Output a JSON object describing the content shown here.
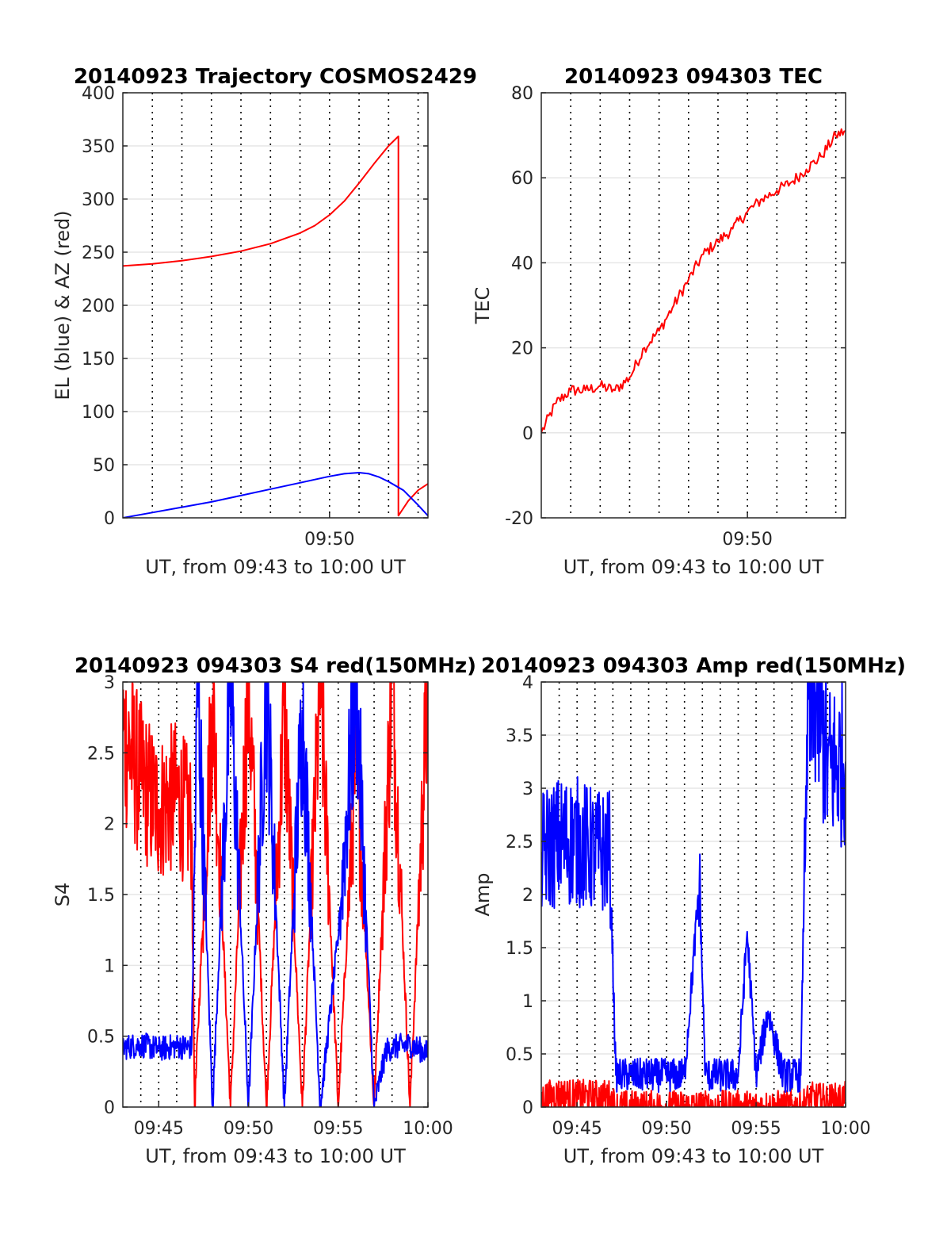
{
  "figure": {
    "background": "#ffffff"
  },
  "colors": {
    "red": "#ff0000",
    "blue": "#0000ff",
    "grid": "#000000",
    "frame": "#262626"
  },
  "chart_data": [
    {
      "type": "line",
      "title": "20140923 Trajectory COSMOS2429",
      "xlabel": "UT, from 09:43 to 10:00 UT",
      "ylabel": "EL (blue) & AZ (red)",
      "xlim": [
        "09:43:00",
        "09:53:20"
      ],
      "ylim": [
        0,
        400
      ],
      "yticks": [
        0,
        50,
        100,
        150,
        200,
        250,
        300,
        350,
        400
      ],
      "xticks": [
        {
          "t": "09:50:00",
          "label": "09:50"
        }
      ],
      "xgrid_minutes": [
        "09:44",
        "09:45",
        "09:46",
        "09:47",
        "09:48",
        "09:49",
        "09:50",
        "09:51",
        "09:52",
        "09:53"
      ],
      "grid": true,
      "series": [
        {
          "color": "red",
          "x": [
            "09:43:00",
            "09:44:00",
            "09:45:00",
            "09:46:00",
            "09:47:00",
            "09:48:00",
            "09:49:00",
            "09:49:30",
            "09:50:00",
            "09:50:30",
            "09:51:00",
            "09:51:30",
            "09:52:00",
            "09:52:20",
            "09:52:20",
            "09:52:40",
            "09:53:00",
            "09:53:20"
          ],
          "y": [
            237,
            239,
            242,
            246,
            251,
            258,
            268,
            275,
            285,
            298,
            315,
            333,
            350,
            359,
            2,
            16,
            26,
            32
          ]
        },
        {
          "color": "blue",
          "x": [
            "09:43:00",
            "09:44:00",
            "09:45:00",
            "09:46:00",
            "09:47:00",
            "09:48:00",
            "09:49:00",
            "09:50:00",
            "09:50:30",
            "09:51:00",
            "09:51:20",
            "09:51:40",
            "09:52:00",
            "09:52:30",
            "09:53:00",
            "09:53:20"
          ],
          "y": [
            0,
            5,
            10,
            15,
            21,
            27,
            33,
            39,
            41.5,
            42.5,
            41.5,
            38.5,
            34,
            26,
            12,
            2
          ]
        }
      ]
    },
    {
      "type": "line",
      "title": "20140923 094303 TEC",
      "xlabel": "UT, from 09:43 to 10:00 UT",
      "ylabel": "TEC",
      "xlim": [
        "09:43:00",
        "09:53:20"
      ],
      "ylim": [
        -20,
        80
      ],
      "yticks": [
        -20,
        0,
        20,
        40,
        60,
        80
      ],
      "xticks": [
        {
          "t": "09:50:00",
          "label": "09:50"
        }
      ],
      "xgrid_minutes": [
        "09:44",
        "09:45",
        "09:46",
        "09:47",
        "09:48",
        "09:49",
        "09:50",
        "09:51",
        "09:52",
        "09:53"
      ],
      "grid": true,
      "series": [
        {
          "color": "red",
          "x": [
            "09:43:00",
            "09:43:30",
            "09:44:00",
            "09:44:30",
            "09:45:00",
            "09:45:30",
            "09:46:00",
            "09:46:30",
            "09:47:00",
            "09:47:30",
            "09:48:00",
            "09:48:30",
            "09:49:00",
            "09:49:30",
            "09:50:00",
            "09:50:30",
            "09:51:00",
            "09:51:30",
            "09:52:00",
            "09:52:30",
            "09:53:00",
            "09:53:20"
          ],
          "y": [
            0,
            7,
            10,
            10,
            11,
            10,
            13,
            20,
            24,
            30,
            36,
            42,
            45,
            48,
            52,
            55,
            57,
            59,
            62,
            65,
            70,
            71
          ]
        }
      ]
    },
    {
      "type": "line",
      "title": "20140923 094303 S4 red(150MHz)",
      "xlabel": "UT, from 09:43 to 10:00 UT",
      "ylabel": "S4",
      "xlim": [
        "09:43:00",
        "10:00:00"
      ],
      "ylim": [
        0,
        3
      ],
      "yticks": [
        0,
        0.5,
        1,
        1.5,
        2,
        2.5,
        3
      ],
      "xticks": [
        {
          "t": "09:45:00",
          "label": "09:45"
        },
        {
          "t": "09:50:00",
          "label": "09:50"
        },
        {
          "t": "09:55:00",
          "label": "09:55"
        },
        {
          "t": "10:00:00",
          "label": "10:00"
        }
      ],
      "xgrid_minutes": [
        "09:44",
        "09:45",
        "09:46",
        "09:47",
        "09:48",
        "09:49",
        "09:50",
        "09:51",
        "09:52",
        "09:53",
        "09:54",
        "09:55",
        "09:56",
        "09:57",
        "09:58",
        "09:59"
      ],
      "grid": true,
      "series": [
        {
          "color": "red",
          "x": [
            "09:43:00",
            "09:44:00",
            "09:45:00",
            "09:46:00",
            "09:46:50",
            "09:47:00",
            "09:48:00",
            "09:49:00",
            "09:50:00",
            "09:51:00",
            "09:52:00",
            "09:53:00",
            "09:54:00",
            "09:55:00",
            "09:56:00",
            "09:57:00",
            "09:58:00",
            "09:59:00",
            "10:00:00"
          ],
          "y": [
            2.65,
            2.3,
            2.1,
            2.2,
            2.0,
            0,
            2.9,
            0,
            3.0,
            0,
            2.8,
            0,
            3.0,
            0,
            2.5,
            0,
            3.0,
            0,
            3.0
          ]
        },
        {
          "color": "blue",
          "x": [
            "09:43:00",
            "09:44:00",
            "09:45:00",
            "09:46:00",
            "09:46:50",
            "09:47:10",
            "09:48:00",
            "09:49:00",
            "09:50:00",
            "09:51:00",
            "09:52:00",
            "09:53:00",
            "09:54:00",
            "09:55:00",
            "09:56:00",
            "09:57:00",
            "09:57:40",
            "09:58:00",
            "09:59:00",
            "10:00:00"
          ],
          "y": [
            0.42,
            0.44,
            0.41,
            0.43,
            0.42,
            3.0,
            0,
            3.0,
            0,
            3.0,
            0,
            2.8,
            0,
            1.2,
            3.0,
            0,
            0.4,
            0.42,
            0.44,
            0.38
          ]
        }
      ]
    },
    {
      "type": "line",
      "title": "20140923 094303 Amp red(150MHz)",
      "xlabel": "UT, from 09:43 to 10:00 UT",
      "ylabel": "Amp",
      "xlim": [
        "09:43:00",
        "10:00:00"
      ],
      "ylim": [
        0,
        4
      ],
      "yticks": [
        0,
        0.5,
        1,
        1.5,
        2,
        2.5,
        3,
        3.5,
        4
      ],
      "xticks": [
        {
          "t": "09:45:00",
          "label": "09:45"
        },
        {
          "t": "09:50:00",
          "label": "09:50"
        },
        {
          "t": "09:55:00",
          "label": "09:55"
        },
        {
          "t": "10:00:00",
          "label": "10:00"
        }
      ],
      "xgrid_minutes": [
        "09:44",
        "09:45",
        "09:46",
        "09:47",
        "09:48",
        "09:49",
        "09:50",
        "09:51",
        "09:52",
        "09:53",
        "09:54",
        "09:55",
        "09:56",
        "09:57",
        "09:58",
        "09:59"
      ],
      "grid": true,
      "series": [
        {
          "color": "red",
          "x": [
            "09:43:00",
            "09:44:00",
            "09:45:00",
            "09:46:00",
            "09:46:50",
            "09:47:10",
            "09:57:30",
            "09:58:00",
            "09:59:00",
            "10:00:00"
          ],
          "y": [
            0.08,
            0.12,
            0.1,
            0.1,
            0.1,
            0,
            0,
            0.08,
            0.06,
            0.08
          ]
        },
        {
          "color": "blue",
          "x": [
            "09:43:00",
            "09:44:00",
            "09:45:00",
            "09:46:00",
            "09:46:50",
            "09:47:10",
            "09:48:00",
            "09:49:00",
            "09:50:00",
            "09:51:00",
            "09:51:50",
            "09:52:10",
            "09:53:00",
            "09:54:00",
            "09:54:30",
            "09:55:00",
            "09:55:40",
            "09:56:30",
            "09:57:30",
            "09:57:50",
            "09:58:20",
            "09:59:00",
            "10:00:00"
          ],
          "y": [
            2.4,
            2.5,
            2.5,
            2.4,
            2.4,
            0.3,
            0.3,
            0.3,
            0.3,
            0.3,
            2.1,
            0.3,
            0.3,
            0.3,
            1.65,
            0.3,
            0.9,
            0.3,
            0.3,
            3.5,
            3.9,
            3.2,
            3.25
          ]
        }
      ]
    }
  ]
}
